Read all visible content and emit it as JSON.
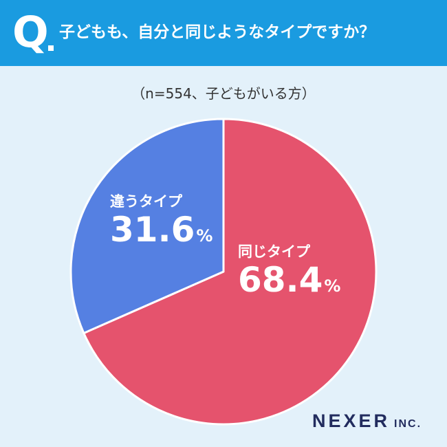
{
  "header": {
    "q_mark": "Q",
    "question": "子どもも、自分と同じようなタイプですか？"
  },
  "subtitle": "（n=554、子どもがいる方）",
  "chart_data": {
    "type": "pie",
    "title": "子どもも、自分と同じようなタイプですか？",
    "subtitle": "（n=554、子どもがいる方）",
    "start": "12 o'clock, clockwise",
    "slices": [
      {
        "label": "同じタイプ",
        "value": 68.4,
        "value_text": "68.4",
        "unit": "%",
        "color": "#e5536d"
      },
      {
        "label": "違うタイプ",
        "value": 31.6,
        "value_text": "31.6",
        "unit": "%",
        "color": "#5580e2"
      }
    ]
  },
  "logo": {
    "main": "NEXER",
    "sub": "INC."
  },
  "colors": {
    "header_bg": "#1a9be0",
    "page_bg": "#e3f1fa",
    "slice_border": "#ffffff",
    "logo": "#222c5e"
  }
}
